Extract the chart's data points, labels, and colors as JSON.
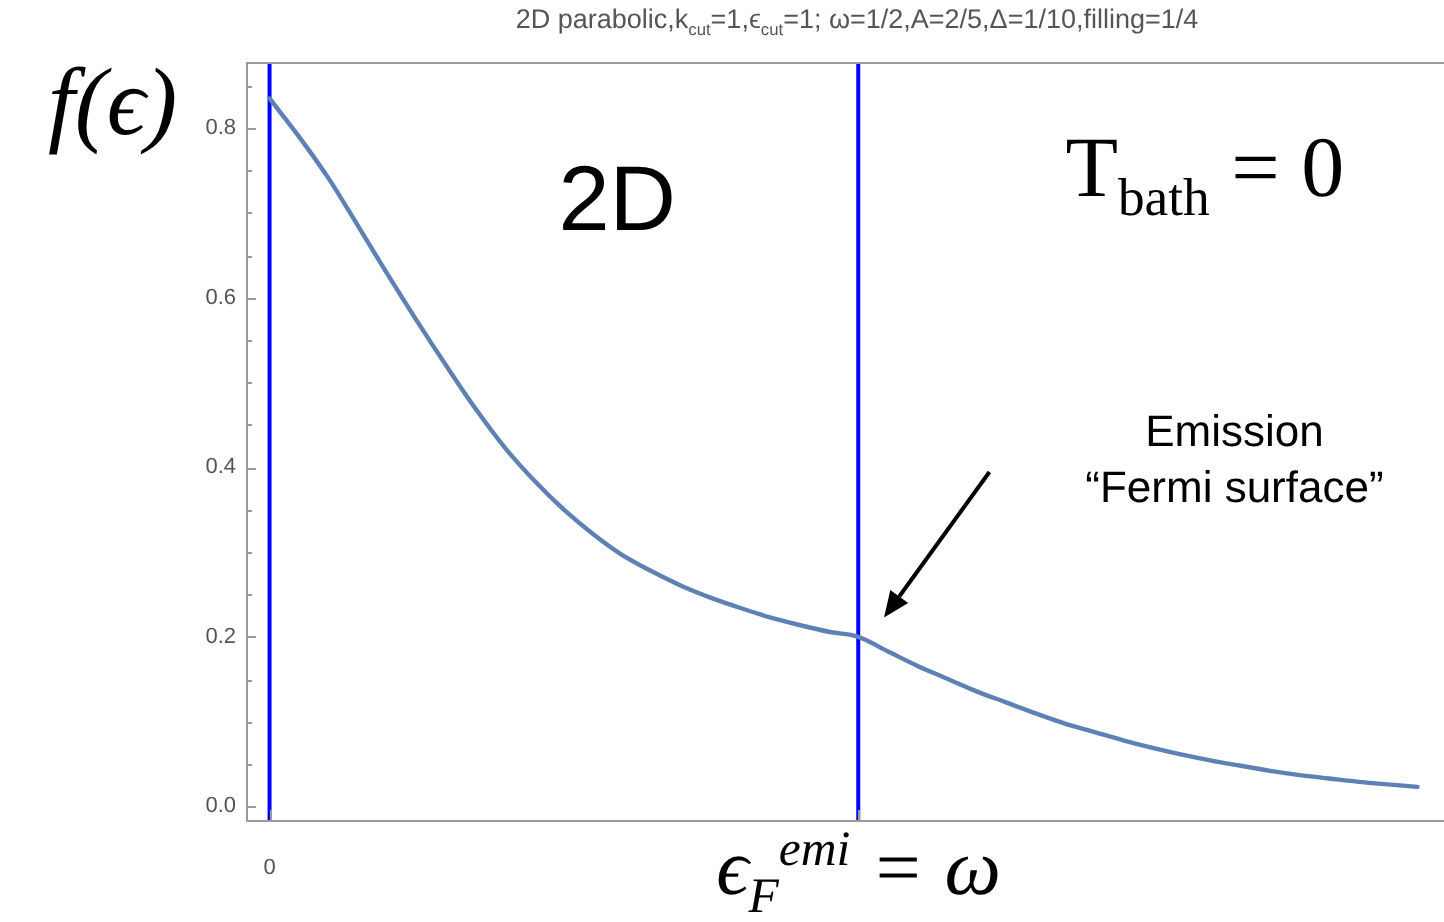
{
  "chart_data": {
    "type": "line",
    "title": "2D parabolic,k$_{cut}$=1,ϵ$_{cut}$=1; ω=1/2,A=2/5,Δ=1/10,filling=1/4",
    "ylabel": "f(ϵ)",
    "annotations": [
      "2D",
      "T$_{bath}$ = 0",
      "Emission\n“Fermi surface”"
    ],
    "categories": [
      "0",
      null,
      null,
      null,
      null,
      null,
      null,
      null,
      null,
      null,
      null,
      null,
      null,
      null,
      null,
      null,
      null,
      null,
      null,
      null,
      "ϵ$_{F}$$^{emi}$ = ω",
      null,
      null,
      null,
      null,
      null,
      null,
      null,
      null,
      null,
      null,
      null,
      null,
      null,
      null,
      null,
      null,
      null,
      null,
      null
    ],
    "series": [
      {
        "color": "#5e81b5",
        "values": [
          0.835,
          0.79,
          0.741,
          0.685,
          0.628,
          0.573,
          0.52,
          0.469,
          0.423,
          0.384,
          0.35,
          0.321,
          0.296,
          0.277,
          0.26,
          0.246,
          0.234,
          0.223,
          0.214,
          0.206,
          0.2,
          0.183,
          0.166,
          0.151,
          0.136,
          0.123,
          0.11,
          0.098,
          0.088,
          0.078,
          0.069,
          0.061,
          0.054,
          0.048,
          0.042,
          0.037,
          0.033,
          0.029,
          0.026,
          0.023
        ]
      }
    ],
    "ylim": [
      -0.016,
      0.878
    ],
    "yticks": [
      {
        "value": 0,
        "label": "0.0"
      },
      {
        "value": 0.05,
        "label": null
      },
      {
        "value": 0.1,
        "label": null
      },
      {
        "value": 0.15,
        "label": null
      },
      {
        "value": 0.2,
        "label": "0.2"
      },
      {
        "value": 0.25,
        "label": null
      },
      {
        "value": 0.3,
        "label": null
      },
      {
        "value": 0.35,
        "label": null
      },
      {
        "value": 0.4,
        "label": "0.4"
      },
      {
        "value": 0.45,
        "label": null
      },
      {
        "value": 0.5,
        "label": null
      },
      {
        "value": 0.55,
        "label": null
      },
      {
        "value": 0.6,
        "label": "0.6"
      },
      {
        "value": 0.65,
        "label": null
      },
      {
        "value": 0.7,
        "label": null
      },
      {
        "value": 0.75,
        "label": null
      },
      {
        "value": 0.8,
        "label": "0.8"
      },
      {
        "value": 0.85,
        "label": null
      }
    ],
    "ref_lines": [
      {
        "axis": "x",
        "value": "0",
        "color": "#0000ff"
      },
      {
        "axis": "x",
        "value": "ϵ$_{F}$$^{emi}$ = ω",
        "color": "#0000ff"
      }
    ],
    "marker": "none"
  }
}
